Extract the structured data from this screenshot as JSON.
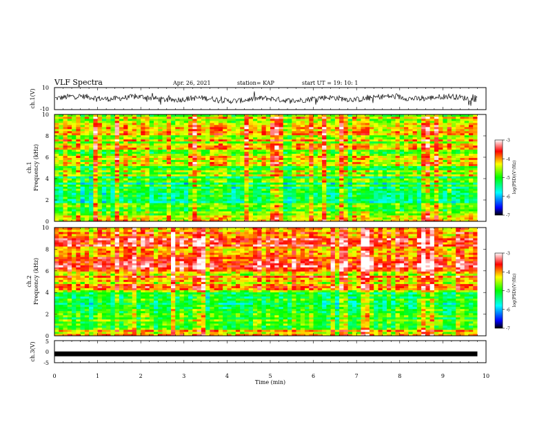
{
  "header": {
    "title": "VLF Spectra",
    "date": "Apr. 26, 2021",
    "station": "station= KAP",
    "start": "start  UT =   19: 10: 1"
  },
  "chart_data": [
    {
      "type": "line",
      "panel": "ch1-waveform",
      "ylabel": "ch.1(V)",
      "ylim": [
        -10,
        10
      ],
      "y_ticks": [
        "10",
        "-10"
      ],
      "xlim": [
        0,
        10
      ],
      "approx_amplitude_range": [
        -6,
        6
      ],
      "line_color": "#000000"
    },
    {
      "type": "heatmap",
      "panel": "ch1-spectrogram",
      "ylabel_line1": "ch.1",
      "ylabel_line2": "Frequency (kHz)",
      "ylim": [
        0,
        10
      ],
      "y_ticks": [
        "0",
        "2",
        "4",
        "6",
        "8",
        "10"
      ],
      "xlim": [
        0,
        10
      ],
      "data_end_min": 9.8,
      "colorbar": {
        "label": "log(PSD)(V²/Hz)",
        "range": [
          -7,
          -3
        ],
        "ticks": [
          "-3",
          "-4",
          "-5",
          "-6",
          "-7"
        ],
        "colors": [
          "#000000",
          "#0000ff",
          "#00ffff",
          "#00ff00",
          "#ffff00",
          "#ff0000",
          "#ffffff"
        ]
      }
    },
    {
      "type": "heatmap",
      "panel": "ch2-spectrogram",
      "ylabel_line1": "ch.2",
      "ylabel_line2": "Frequency (kHz)",
      "ylim": [
        0,
        10
      ],
      "y_ticks": [
        "0",
        "2",
        "4",
        "6",
        "8",
        "10"
      ],
      "xlim": [
        0,
        10
      ],
      "data_end_min": 9.8,
      "colorbar": {
        "label": "log(PSD)(V²/Hz)",
        "range": [
          -7,
          -3
        ],
        "ticks": [
          "-3",
          "-4",
          "-5",
          "-6",
          "-7"
        ],
        "colors": [
          "#000000",
          "#0000ff",
          "#00ffff",
          "#00ff00",
          "#ffff00",
          "#ff0000",
          "#ffffff"
        ]
      }
    },
    {
      "type": "line",
      "panel": "ch3-waveform",
      "ylabel": "ch.3(V)",
      "ylim": [
        -5,
        5
      ],
      "y_ticks": [
        "5",
        "0",
        "-5"
      ],
      "xlim": [
        0,
        10
      ],
      "approx_level": -1,
      "data_end_min": 9.8,
      "xlabel": "Time (min)",
      "x_ticks": [
        "0",
        "1",
        "2",
        "3",
        "4",
        "5",
        "6",
        "7",
        "8",
        "9",
        "10"
      ]
    }
  ]
}
